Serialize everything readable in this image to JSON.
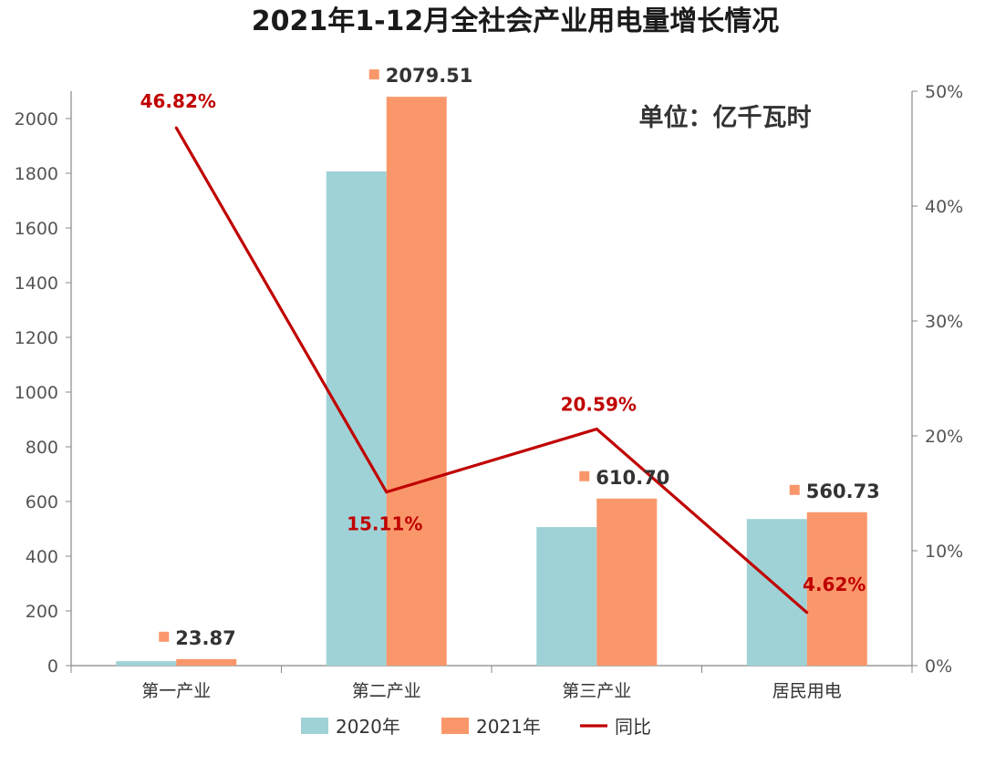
{
  "chart_data": {
    "type": "bar",
    "title": "2021年1-12月全社会产业用电量增长情况",
    "unit_note": "单位：亿千瓦时",
    "categories": [
      "第一产业",
      "第二产业",
      "第三产业",
      "居民用电"
    ],
    "series": [
      {
        "name": "2020年",
        "type": "bar",
        "axis": "left",
        "values": [
          16.26,
          1806.6,
          506.4,
          536.0
        ]
      },
      {
        "name": "2021年",
        "type": "bar",
        "axis": "left",
        "values": [
          23.87,
          2079.51,
          610.7,
          560.73
        ],
        "labels": [
          "23.87",
          "2079.51",
          "610.70",
          "560.73"
        ]
      },
      {
        "name": "同比",
        "type": "line",
        "axis": "right",
        "values": [
          46.82,
          15.11,
          20.59,
          4.62
        ],
        "labels": [
          "46.82%",
          "15.11%",
          "20.59%",
          "4.62%"
        ]
      }
    ],
    "y_left": {
      "min": 0,
      "max": 2100,
      "ticks": [
        "0",
        "200",
        "400",
        "600",
        "800",
        "1000",
        "1200",
        "1400",
        "1600",
        "1800",
        "2000"
      ]
    },
    "y_right": {
      "min": 0,
      "max": 50,
      "ticks": [
        "0%",
        "10%",
        "20%",
        "30%",
        "40%",
        "50%"
      ]
    },
    "grid": false,
    "legend_position": "bottom",
    "colors": {
      "2020": "#9fd2d6",
      "2021": "#f9976b",
      "line": "#c00000",
      "axis": "#888888",
      "text": "#333333"
    }
  }
}
